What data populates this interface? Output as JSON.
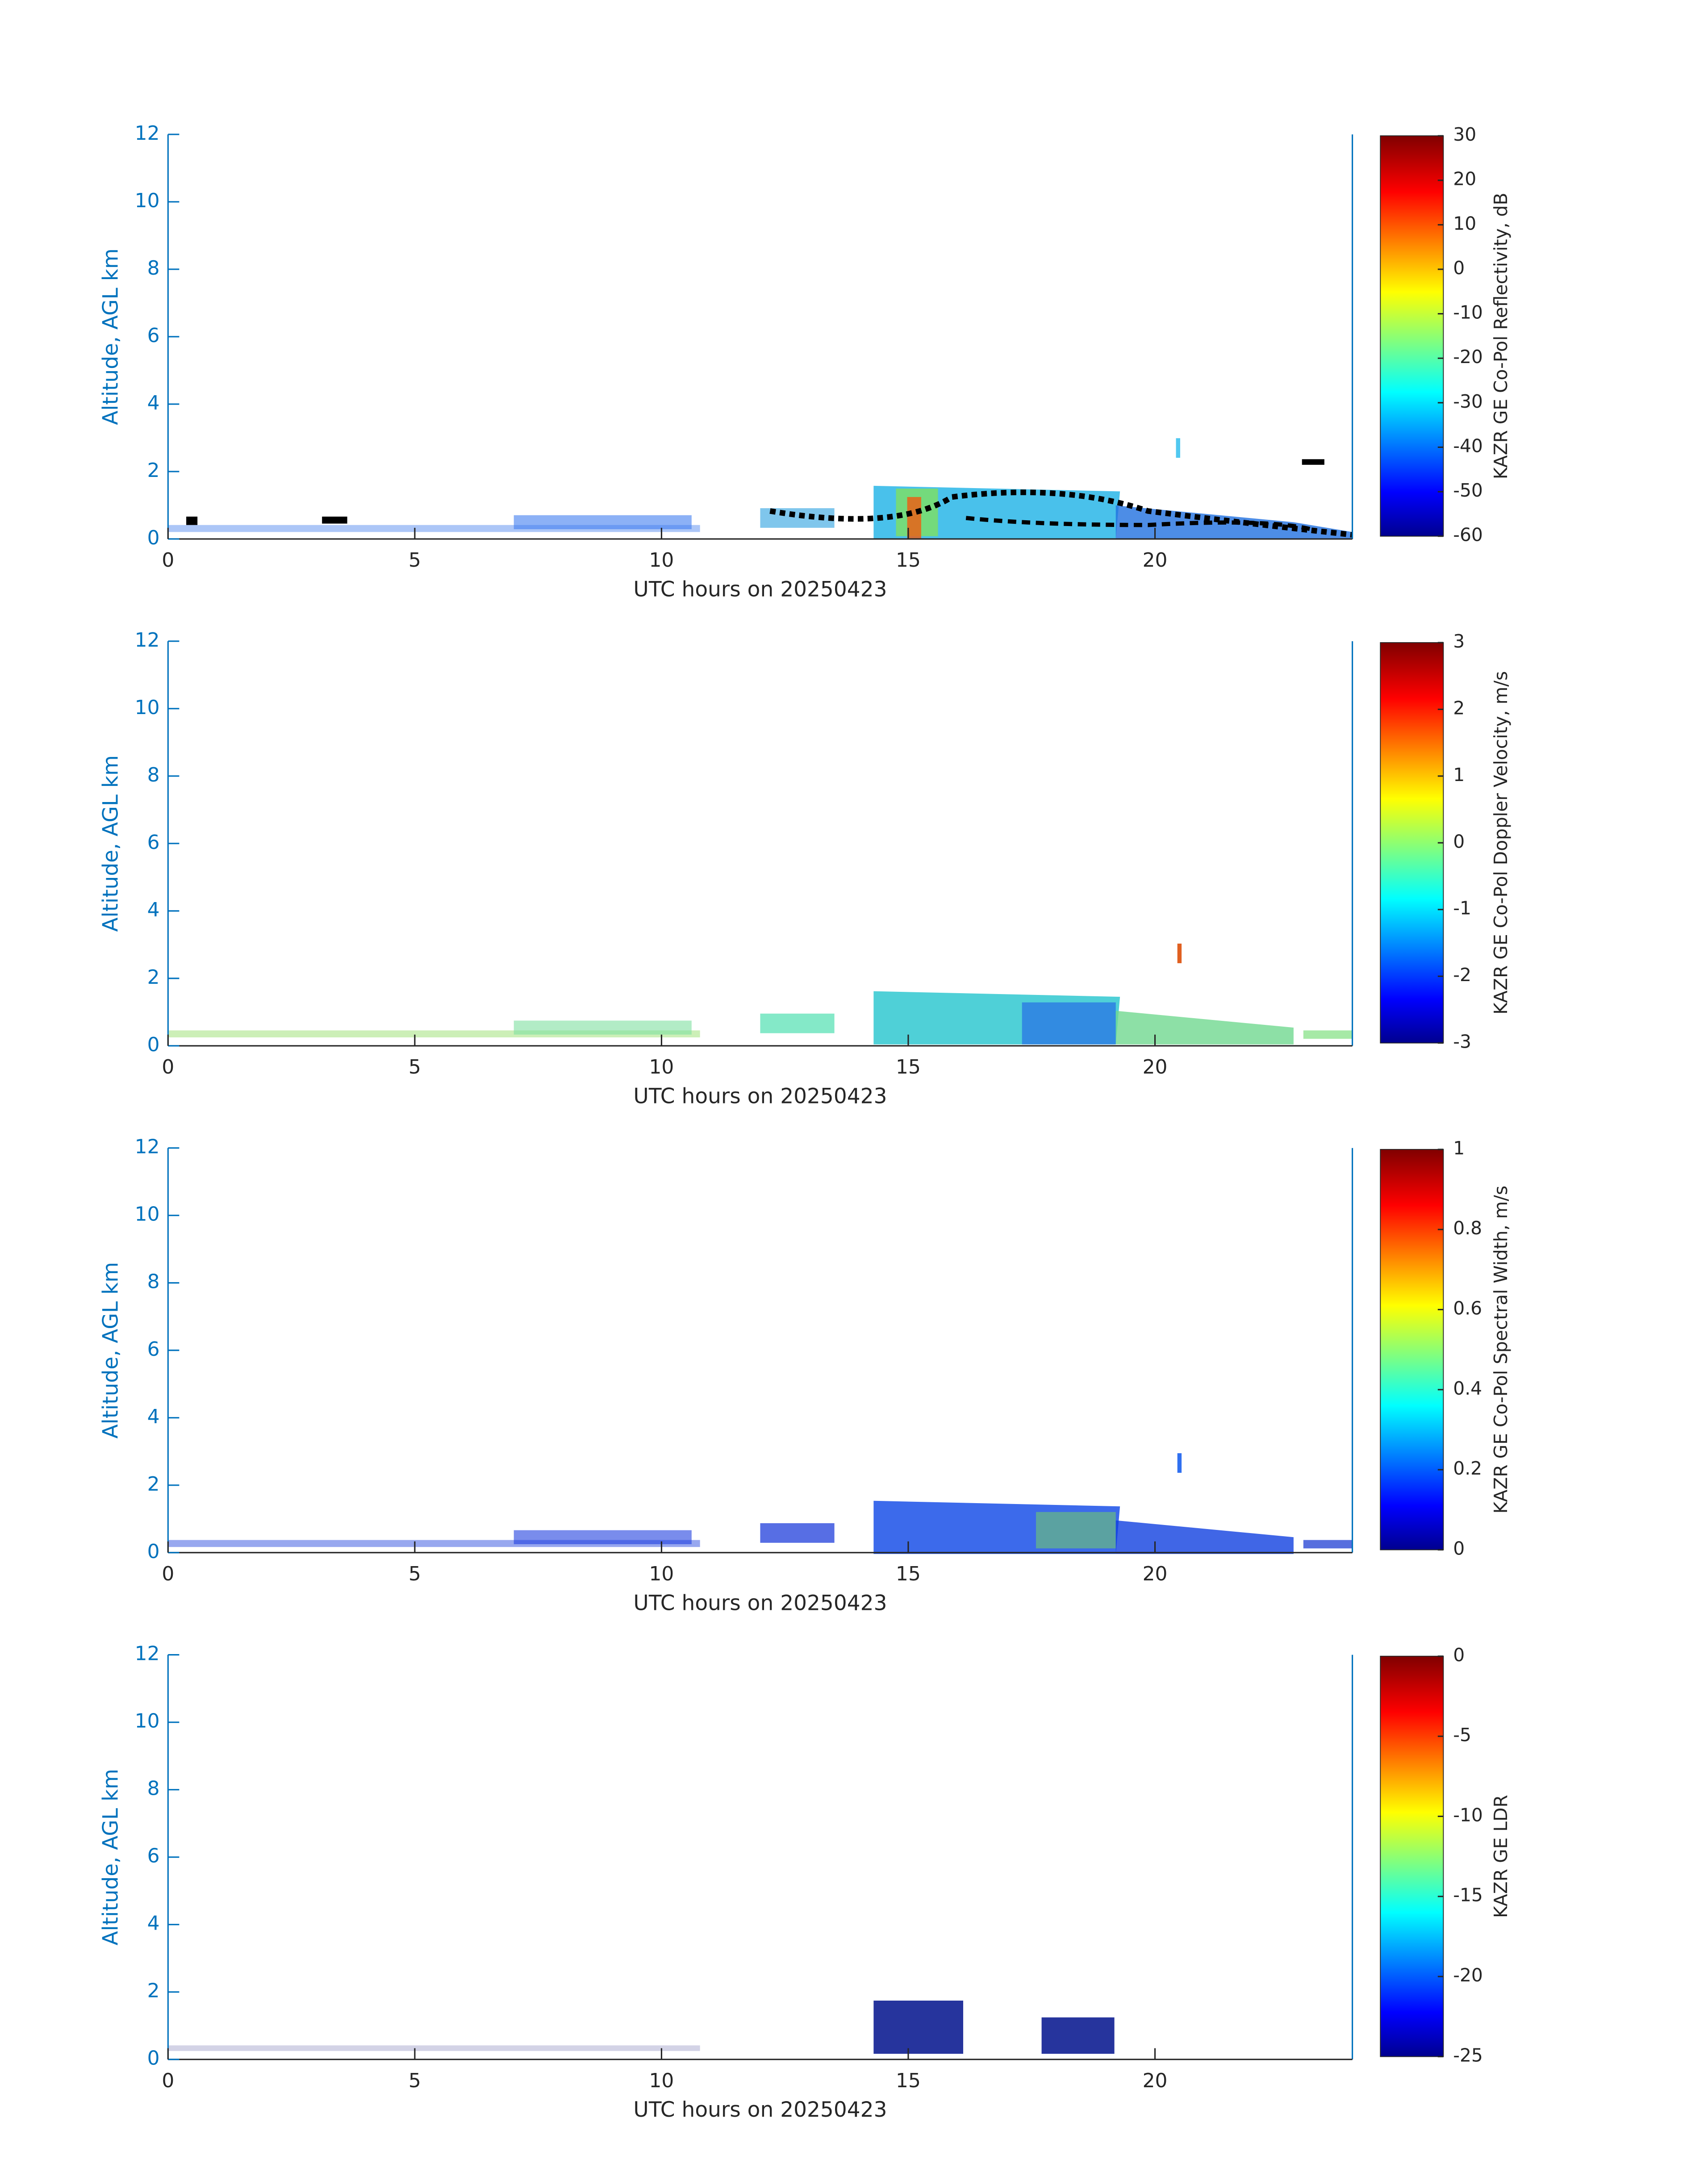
{
  "chart_data": [
    {
      "type": "heatmap",
      "xlabel": "UTC hours on 20250423",
      "ylabel": "Altitude, AGL km",
      "xlim": [
        0,
        24
      ],
      "xticks": [
        0,
        5,
        10,
        15,
        20
      ],
      "ylim": [
        0,
        12
      ],
      "yticks": [
        0,
        2,
        4,
        6,
        8,
        10,
        12
      ],
      "colormap": "jet",
      "colorbar": {
        "label": "KAZR GE Co-Pol Reflectivity, dB",
        "lim": [
          -60,
          30
        ],
        "ticks": [
          -60,
          -50,
          -40,
          -30,
          -20,
          -10,
          0,
          10,
          20,
          30
        ]
      }
    },
    {
      "type": "heatmap",
      "xlabel": "UTC hours on 20250423",
      "ylabel": "Altitude, AGL km",
      "xlim": [
        0,
        24
      ],
      "xticks": [
        0,
        5,
        10,
        15,
        20
      ],
      "ylim": [
        0,
        12
      ],
      "yticks": [
        0,
        2,
        4,
        6,
        8,
        10,
        12
      ],
      "colormap": "jet",
      "colorbar": {
        "label": "KAZR GE Co-Pol Doppler Velocity, m/s",
        "lim": [
          -3,
          3
        ],
        "ticks": [
          -3,
          -2,
          -1,
          0,
          1,
          2,
          3
        ]
      }
    },
    {
      "type": "heatmap",
      "xlabel": "UTC hours on 20250423",
      "ylabel": "Altitude, AGL km",
      "xlim": [
        0,
        24
      ],
      "xticks": [
        0,
        5,
        10,
        15,
        20
      ],
      "ylim": [
        0,
        12
      ],
      "yticks": [
        0,
        2,
        4,
        6,
        8,
        10,
        12
      ],
      "colormap": "jet",
      "colorbar": {
        "label": "KAZR GE Co-Pol Spectral Width, m/s",
        "lim": [
          0,
          1
        ],
        "ticks": [
          0,
          0.2,
          0.4,
          0.6,
          0.8,
          1
        ]
      }
    },
    {
      "type": "heatmap",
      "xlabel": "UTC hours on 20250423",
      "ylabel": "Altitude, AGL km",
      "xlim": [
        0,
        24
      ],
      "xticks": [
        0,
        5,
        10,
        15,
        20
      ],
      "ylim": [
        0,
        12
      ],
      "yticks": [
        0,
        2,
        4,
        6,
        8,
        10,
        12
      ],
      "colormap": "jet",
      "colorbar": {
        "label": "KAZR GE LDR",
        "lim": [
          -25,
          0
        ],
        "ticks": [
          -25,
          -20,
          -15,
          -10,
          -5,
          0
        ]
      }
    }
  ]
}
